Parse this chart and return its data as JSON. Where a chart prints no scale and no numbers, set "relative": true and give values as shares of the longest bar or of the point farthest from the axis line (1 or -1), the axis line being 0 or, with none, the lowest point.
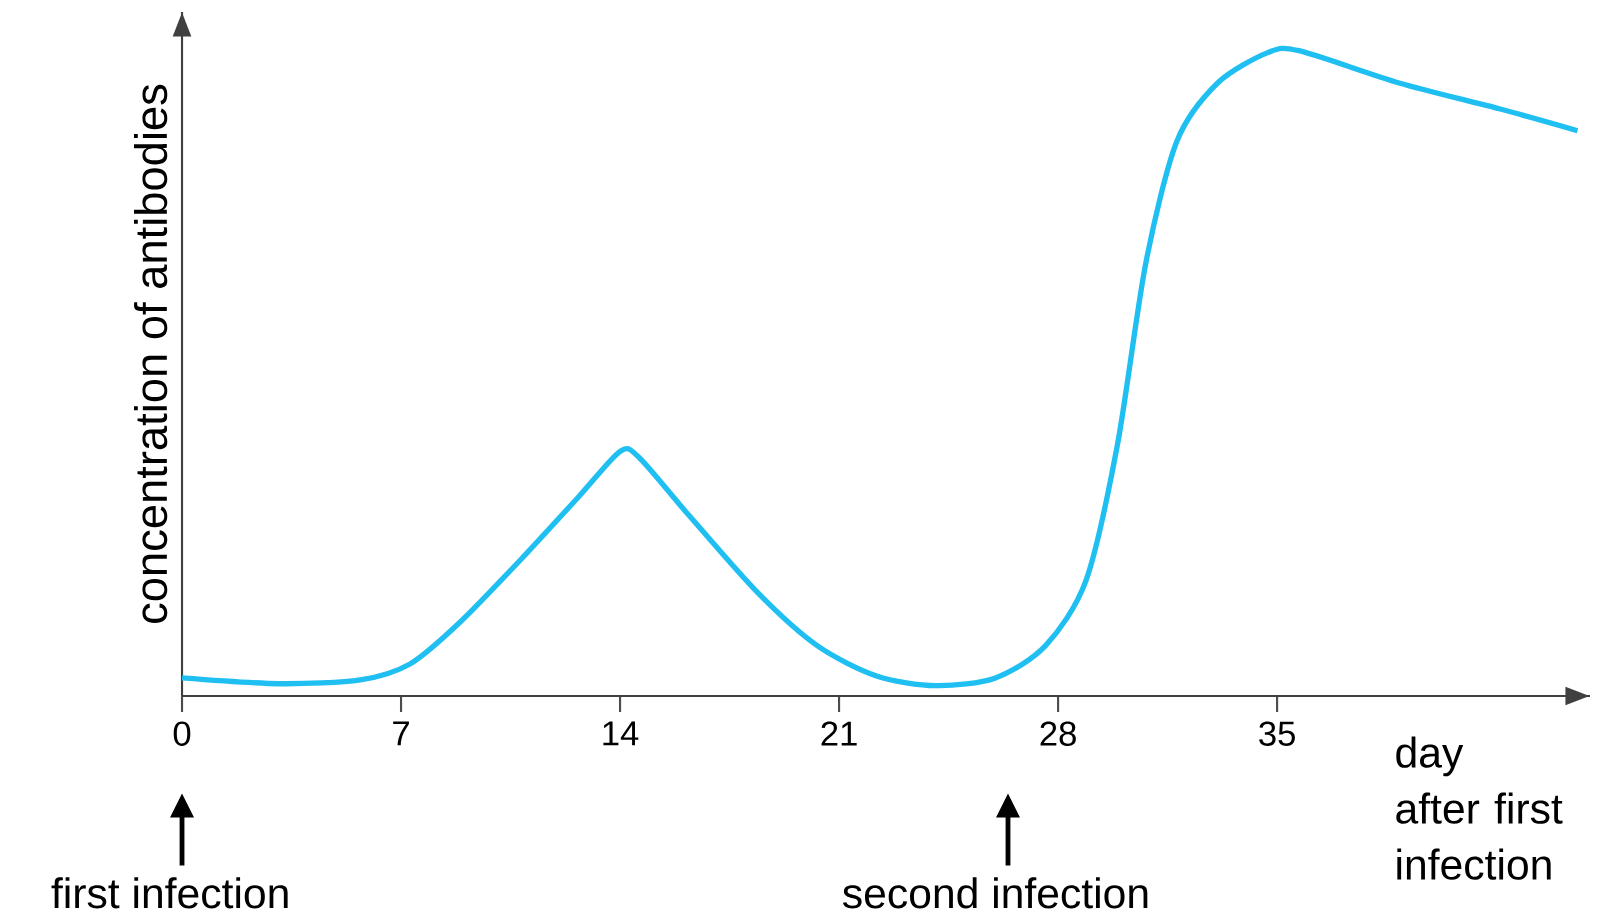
{
  "chart_data": {
    "type": "line",
    "relative": true,
    "xlabel": "day after first infection",
    "ylabel": "concentration of antibodies",
    "color": "#1fbff2",
    "marker": "none",
    "line_style": "solid",
    "x": [
      0,
      3.1,
      5.7,
      7.3,
      8.9,
      10.8,
      12.7,
      14,
      14.6,
      16.2,
      18.4,
      20.3,
      22.2,
      24.1,
      26,
      27.6,
      28.9,
      29.9,
      30.8,
      31.8,
      33.1,
      34.7,
      35.7,
      38.9,
      42.1,
      44.6
    ],
    "values": [
      0.028,
      0.019,
      0.025,
      0.05,
      0.115,
      0.21,
      0.31,
      0.379,
      0.37,
      0.28,
      0.16,
      0.078,
      0.031,
      0.016,
      0.028,
      0.078,
      0.18,
      0.39,
      0.67,
      0.86,
      0.95,
      0.997,
      1,
      0.95,
      0.91,
      0.876
    ],
    "xlim": [
      0,
      45
    ],
    "xticks": [
      0,
      7,
      14,
      21,
      28,
      35
    ],
    "annotations": [
      "first infection",
      "second infection"
    ]
  }
}
